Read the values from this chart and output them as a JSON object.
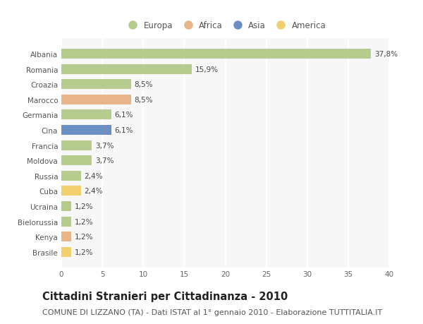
{
  "countries": [
    "Albania",
    "Romania",
    "Croazia",
    "Marocco",
    "Germania",
    "Cina",
    "Francia",
    "Moldova",
    "Russia",
    "Cuba",
    "Ucraina",
    "Bielorussia",
    "Kenya",
    "Brasile"
  ],
  "values": [
    37.8,
    15.9,
    8.5,
    8.5,
    6.1,
    6.1,
    3.7,
    3.7,
    2.4,
    2.4,
    1.2,
    1.2,
    1.2,
    1.2
  ],
  "labels": [
    "37,8%",
    "15,9%",
    "8,5%",
    "8,5%",
    "6,1%",
    "6,1%",
    "3,7%",
    "3,7%",
    "2,4%",
    "2,4%",
    "1,2%",
    "1,2%",
    "1,2%",
    "1,2%"
  ],
  "colors": [
    "#b5cc8e",
    "#b5cc8e",
    "#b5cc8e",
    "#e8b48a",
    "#b5cc8e",
    "#6b8fc2",
    "#b5cc8e",
    "#b5cc8e",
    "#b5cc8e",
    "#f2cf6e",
    "#b5cc8e",
    "#b5cc8e",
    "#e8b48a",
    "#f2cf6e"
  ],
  "continents": [
    "Europa",
    "Africa",
    "Asia",
    "America"
  ],
  "legend_colors": [
    "#b5cc8e",
    "#e8b48a",
    "#6b8fc2",
    "#f2cf6e"
  ],
  "title": "Cittadini Stranieri per Cittadinanza - 2010",
  "subtitle": "COMUNE DI LIZZANO (TA) - Dati ISTAT al 1° gennaio 2010 - Elaborazione TUTTITALIA.IT",
  "xlim": [
    0,
    40
  ],
  "xticks": [
    0,
    5,
    10,
    15,
    20,
    25,
    30,
    35,
    40
  ],
  "background_color": "#ffffff",
  "plot_bg_color": "#f7f7f7",
  "bar_height": 0.65,
  "grid_color": "#ffffff",
  "title_fontsize": 10.5,
  "subtitle_fontsize": 8,
  "label_fontsize": 7.5,
  "tick_fontsize": 7.5,
  "legend_fontsize": 8.5
}
